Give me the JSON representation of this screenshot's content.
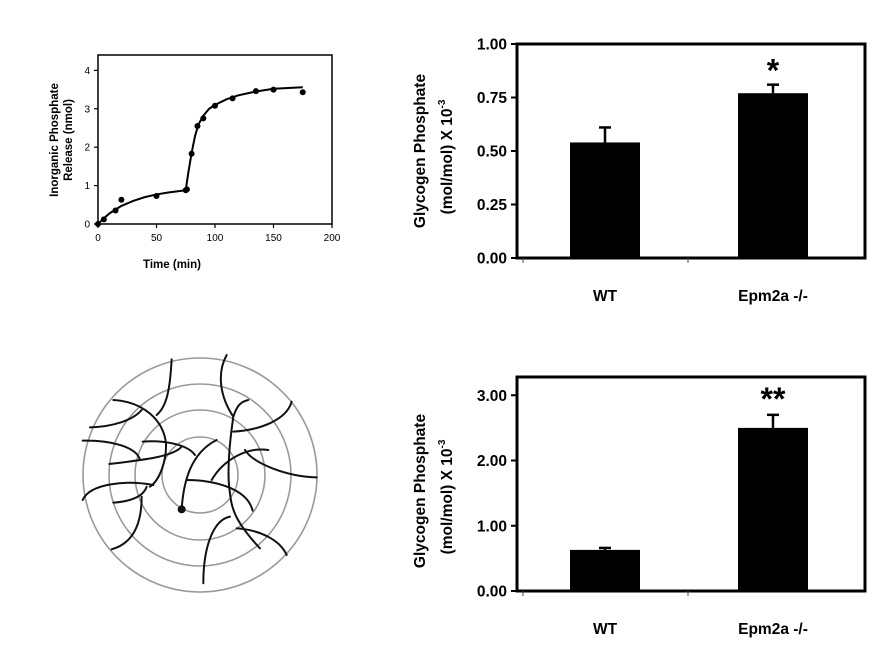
{
  "chart_data": [
    {
      "type": "scatter",
      "xlabel": "Time (min)",
      "ylabel_lines": [
        "Inorganic Phosphate",
        "Release (nmol)"
      ],
      "xlim": [
        0,
        200
      ],
      "ylim": [
        0,
        4.4
      ],
      "xticks": [
        0,
        50,
        100,
        150,
        200
      ],
      "yticks": [
        0,
        1,
        2,
        3,
        4
      ],
      "points": [
        [
          0,
          0
        ],
        [
          5,
          0.12
        ],
        [
          15,
          0.35
        ],
        [
          20,
          0.63
        ],
        [
          50,
          0.73
        ],
        [
          75,
          0.88
        ],
        [
          76,
          0.9
        ],
        [
          80,
          1.83
        ],
        [
          85,
          2.55
        ],
        [
          90,
          2.75
        ],
        [
          100,
          3.08
        ],
        [
          115,
          3.27
        ],
        [
          135,
          3.46
        ],
        [
          150,
          3.5
        ],
        [
          175,
          3.43
        ]
      ],
      "fit_curve": [
        [
          0,
          0
        ],
        [
          5,
          0.15
        ],
        [
          10,
          0.28
        ],
        [
          20,
          0.47
        ],
        [
          30,
          0.6
        ],
        [
          40,
          0.7
        ],
        [
          50,
          0.77
        ],
        [
          60,
          0.82
        ],
        [
          70,
          0.86
        ],
        [
          75,
          0.88
        ],
        [
          77,
          1.3
        ],
        [
          80,
          1.85
        ],
        [
          83,
          2.3
        ],
        [
          86,
          2.6
        ],
        [
          90,
          2.82
        ],
        [
          95,
          3.0
        ],
        [
          100,
          3.1
        ],
        [
          110,
          3.25
        ],
        [
          120,
          3.35
        ],
        [
          135,
          3.45
        ],
        [
          150,
          3.52
        ],
        [
          175,
          3.56
        ]
      ],
      "grid": false
    },
    {
      "type": "bar",
      "categories": [
        "WT",
        "Epm2a -/-"
      ],
      "values": [
        0.54,
        0.77
      ],
      "errors": [
        0.07,
        0.04
      ],
      "annotations": [
        "",
        "*"
      ],
      "ylabel_main": "Glycogen Phosphate",
      "ylabel_sub": "(mol/mol) X 10",
      "ylabel_exp": "-3",
      "ylim": [
        0,
        1.0
      ],
      "yticks": [
        "0.00",
        "0.25",
        "0.50",
        "0.75",
        "1.00"
      ],
      "grid": false
    },
    {
      "type": "bar",
      "categories": [
        "WT",
        "Epm2a -/-"
      ],
      "values": [
        0.63,
        2.5
      ],
      "errors": [
        0.03,
        0.2
      ],
      "annotations": [
        "",
        "**"
      ],
      "ylabel_main": "Glycogen Phosphate",
      "ylabel_sub": "(mol/mol) X 10",
      "ylabel_exp": "-3",
      "ylim": [
        0,
        3.28
      ],
      "yticks": [
        "0.00",
        "1.00",
        "2.00",
        "3.00"
      ],
      "grid": false
    }
  ],
  "diagram": {
    "ring_color": "#999999",
    "chain_color": "#111111"
  }
}
